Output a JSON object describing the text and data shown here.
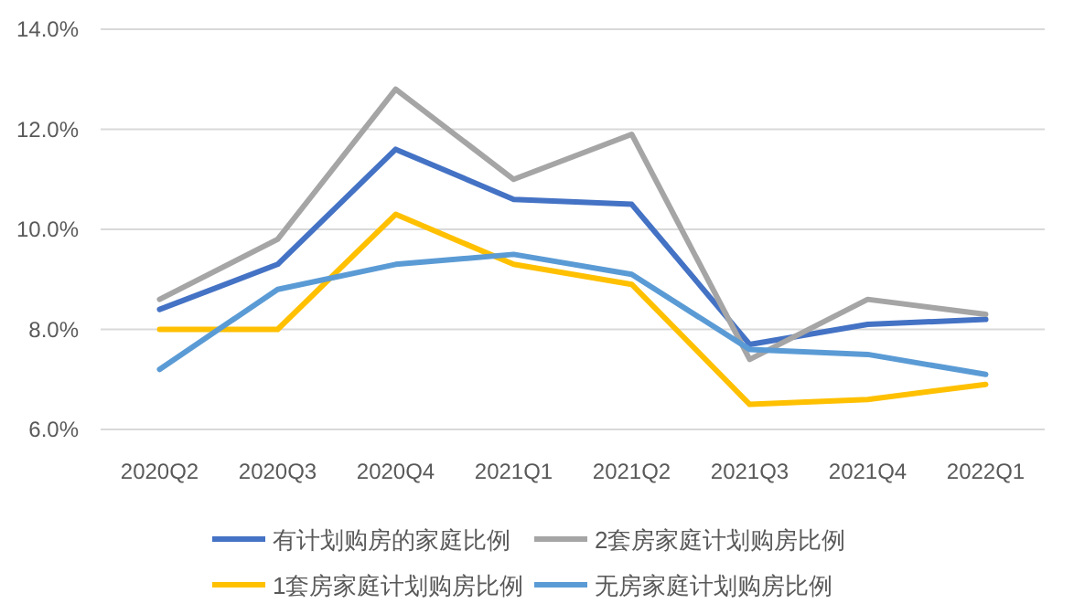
{
  "chart_data": {
    "type": "line",
    "categories": [
      "2020Q2",
      "2020Q3",
      "2020Q4",
      "2021Q1",
      "2021Q2",
      "2021Q3",
      "2021Q4",
      "2022Q1"
    ],
    "series": [
      {
        "name": "有计划购房的家庭比例",
        "color": "#4472c4",
        "values": [
          8.4,
          9.3,
          11.6,
          10.6,
          10.5,
          7.7,
          8.1,
          8.2
        ]
      },
      {
        "name": "2套房家庭计划购房比例",
        "color": "#a5a5a5",
        "values": [
          8.6,
          9.8,
          12.8,
          11.0,
          11.9,
          7.4,
          8.6,
          8.3
        ]
      },
      {
        "name": "1套房家庭计划购房比例",
        "color": "#ffc000",
        "values": [
          8.0,
          8.0,
          10.3,
          9.3,
          8.9,
          6.5,
          6.6,
          6.9
        ]
      },
      {
        "name": "无房家庭计划购房比例",
        "color": "#5b9bd5",
        "values": [
          7.2,
          8.8,
          9.3,
          9.5,
          9.1,
          7.6,
          7.5,
          7.1
        ]
      }
    ],
    "ylim": [
      6,
      14
    ],
    "yticks": [
      {
        "value": 6,
        "label": "6.0%"
      },
      {
        "value": 8,
        "label": "8.0%"
      },
      {
        "value": 10,
        "label": "10.0%"
      },
      {
        "value": 12,
        "label": "12.0%"
      },
      {
        "value": 14,
        "label": "14.0%"
      }
    ],
    "grid": "y",
    "legend": "bottom"
  }
}
